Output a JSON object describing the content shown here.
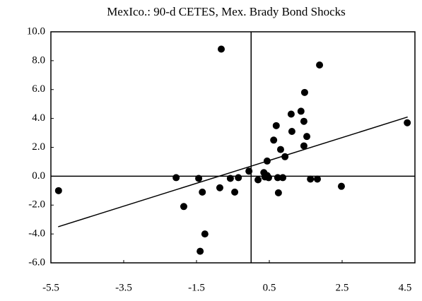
{
  "chart_data": {
    "type": "scatter",
    "title": "MexIco.: 90-d CETES,  Mex. Brady Bond Shocks",
    "x": [
      -5.29,
      -2.06,
      -1.85,
      -1.44,
      -1.34,
      -1.4,
      -1.27,
      -0.82,
      -0.86,
      -0.57,
      -0.45,
      -0.35,
      -0.06,
      0.19,
      0.35,
      0.38,
      0.44,
      0.44,
      0.48,
      0.62,
      0.69,
      0.73,
      0.75,
      0.81,
      0.87,
      0.93,
      1.1,
      1.12,
      1.37,
      1.45,
      1.47,
      1.45,
      1.53,
      1.63,
      1.82,
      1.88,
      2.48,
      4.29
    ],
    "values": [
      -1.0,
      -0.1,
      -2.1,
      -0.15,
      -1.1,
      -5.2,
      -4.0,
      8.8,
      -0.8,
      -0.15,
      -1.1,
      -0.1,
      0.35,
      -0.25,
      0.25,
      -0.05,
      0.05,
      1.05,
      -0.1,
      2.5,
      3.5,
      -0.1,
      -1.15,
      1.85,
      -0.1,
      1.35,
      4.3,
      3.1,
      4.5,
      3.8,
      5.8,
      2.1,
      2.75,
      -0.2,
      -0.2,
      7.7,
      -0.7,
      3.7
    ],
    "color": "#000000",
    "trend_line": {
      "x": [
        -5.3,
        4.3
      ],
      "y": [
        -3.5,
        4.1
      ]
    },
    "xlim": [
      -5.5,
      4.5
    ],
    "xticks": [
      -5.5,
      -3.5,
      -1.5,
      0.5,
      2.5,
      4.5
    ],
    "ylim": [
      -6,
      10
    ],
    "yticks": [
      {
        "value": -6,
        "label": "-6.0"
      },
      {
        "value": -4,
        "label": "-4.0"
      },
      {
        "value": -2,
        "label": "-2.0"
      },
      {
        "value": 0,
        "label": "0.0"
      },
      {
        "value": 2,
        "label": "2.0"
      },
      {
        "value": 4,
        "label": "4.0"
      },
      {
        "value": 6,
        "label": "6.0"
      },
      {
        "value": 8,
        "label": "8.0"
      },
      {
        "value": 10,
        "label": "10.0"
      }
    ],
    "grid": false
  }
}
